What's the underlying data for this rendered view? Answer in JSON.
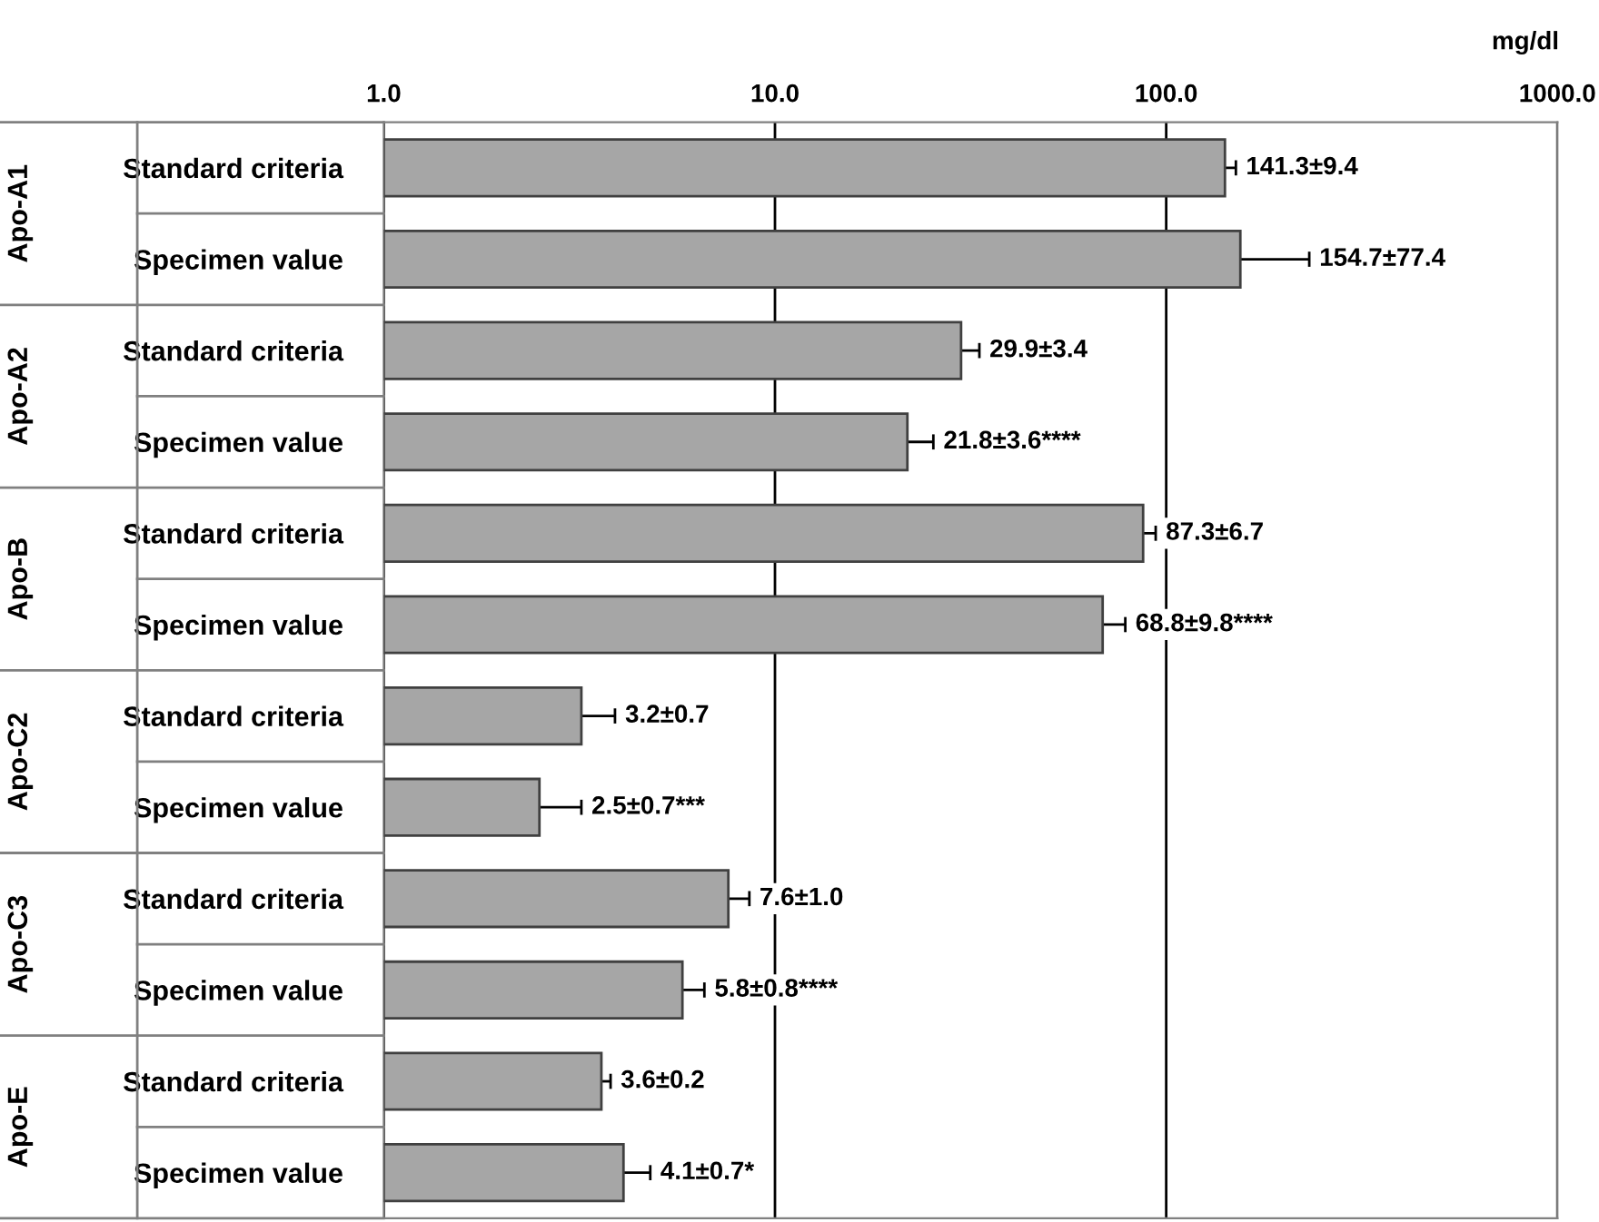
{
  "chart_data": {
    "type": "bar",
    "orientation": "horizontal",
    "log": "x",
    "xlabel": "mg/dl",
    "categories": [
      "Standard criteria",
      "Specimen value",
      "Standard criteria",
      "Specimen value",
      "Standard criteria",
      "Specimen value",
      "Standard criteria",
      "Specimen value",
      "Standard criteria",
      "Specimen value",
      "Standard criteria",
      "Specimen value"
    ],
    "annotations": [
      "Apo-A1",
      "Apo-A2",
      "Apo-B",
      "Apo-C2",
      "Apo-C3",
      "Apo-E"
    ],
    "values": [
      141.3,
      154.7,
      29.9,
      21.8,
      87.3,
      68.8,
      3.2,
      2.5,
      7.6,
      5.8,
      3.6,
      4.1
    ],
    "errors": [
      9.4,
      77.4,
      3.4,
      3.6,
      6.7,
      9.8,
      0.7,
      0.7,
      1.0,
      0.8,
      0.2,
      0.7
    ],
    "value_labels": [
      "141.3±9.4",
      "154.7±77.4",
      "29.9±3.4",
      "21.8±3.6****",
      "87.3±6.7",
      "68.8±9.8****",
      "3.2±0.7",
      "2.5±0.7***",
      "7.6±1.0",
      "5.8±0.8****",
      "3.6±0.2",
      "4.1±0.7*"
    ],
    "color": "#a6a6a6",
    "xlim": [
      1,
      1000
    ],
    "xticks": [
      {
        "value": 1,
        "label": "1.0"
      },
      {
        "value": 10,
        "label": "10.0"
      },
      {
        "value": 100,
        "label": "100.0"
      },
      {
        "value": 1000,
        "label": "1000.0"
      }
    ],
    "grid": "x"
  }
}
